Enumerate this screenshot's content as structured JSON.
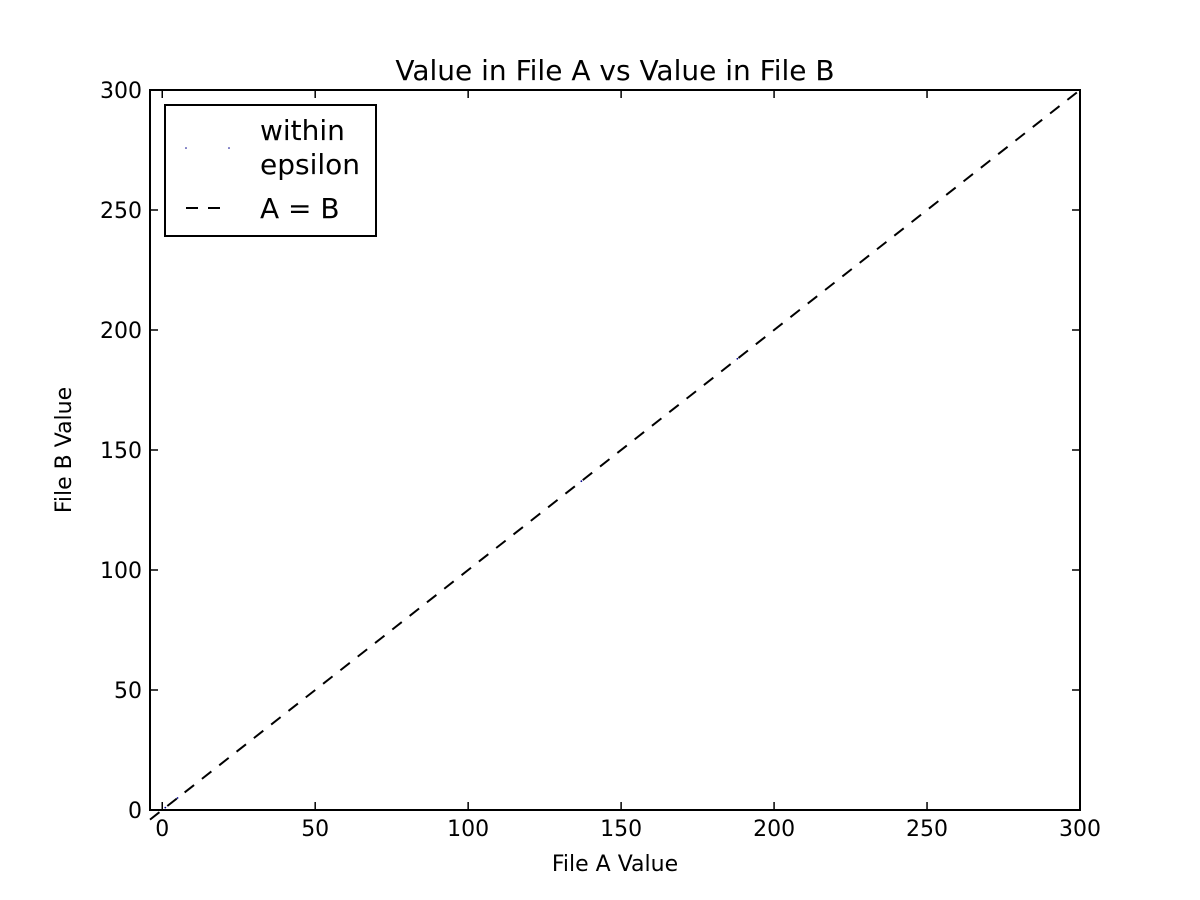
{
  "chart_data": {
    "type": "scatter",
    "title": "Value in File A vs Value in File B",
    "xlabel": "File A Value",
    "ylabel": "File B Value",
    "xlim": [
      -4,
      300
    ],
    "ylim": [
      0,
      300
    ],
    "xticks": [
      0,
      50,
      100,
      150,
      200,
      250,
      300
    ],
    "yticks": [
      0,
      50,
      100,
      150,
      200,
      250,
      300
    ],
    "grid": false,
    "legend_position": "top-left",
    "series": [
      {
        "name": "within\nepsilon",
        "kind": "points",
        "color": "#00008b",
        "x": [
          1,
          3,
          5,
          106,
          137,
          188,
          201,
          252
        ],
        "y": [
          1,
          3,
          5,
          106,
          137,
          188,
          201,
          252
        ]
      },
      {
        "name": "A = B",
        "kind": "dashed-line",
        "color": "#000000",
        "x": [
          -4,
          300
        ],
        "y": [
          -4,
          300
        ]
      }
    ]
  }
}
